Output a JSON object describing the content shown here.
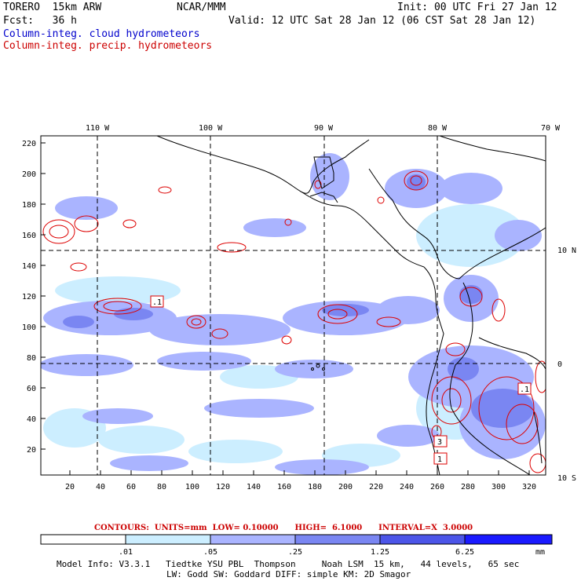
{
  "header": {
    "model": "TORERO  15km ARW",
    "org": "NCAR/MMM",
    "init": "Init: 00 UTC Fri 27 Jan 12",
    "fcst": "Fcst:   36 h",
    "valid": "Valid: 12 UTC Sat 28 Jan 12 (06 CST Sat 28 Jan 12)",
    "field1": "Column-integ. cloud hydrometeors",
    "field2": "Column-integ. precip. hydrometeors"
  },
  "map": {
    "lon_labels": [
      "110 W",
      "100 W",
      "90 W",
      "80 W",
      "70 W"
    ],
    "lat_labels": [
      "10 N",
      "0",
      "10 S"
    ],
    "y_ticks": [
      "220",
      "200",
      "180",
      "160",
      "140",
      "120",
      "100",
      "80",
      "60",
      "40",
      "20"
    ],
    "x_ticks": [
      "20",
      "40",
      "60",
      "80",
      "100",
      "120",
      "140",
      "160",
      "180",
      "200",
      "220",
      "240",
      "260",
      "280",
      "300",
      "320"
    ],
    "box_labels": [
      ".1",
      "3",
      "1",
      ".1"
    ],
    "colors": {
      "fill_light": "#cceeff",
      "fill_mid": "#aab4ff",
      "fill_dark": "#7a86f2",
      "contour": "#dd0000",
      "coast": "#000000"
    }
  },
  "contour_info": "CONTOURS:  UNITS=mm  LOW= 0.10000      HIGH=  6.1000      INTERVAL=X  3.0000",
  "colorbar": {
    "labels": [
      ".01",
      ".05",
      ".25",
      "1.25",
      "6.25"
    ],
    "unit": "mm",
    "colors": [
      "#ffffff",
      "#cceeff",
      "#aab4ff",
      "#7a86f2",
      "#4c55e8",
      "#1a1aff"
    ]
  },
  "footer": {
    "line1": "Model Info: V3.3.1   Tiedtke YSU PBL  Thompson     Noah LSM  15 km,   44 levels,   65 sec",
    "line2": "LW: Godd SW: Goddard DIFF: simple KM: 2D Smagor"
  }
}
